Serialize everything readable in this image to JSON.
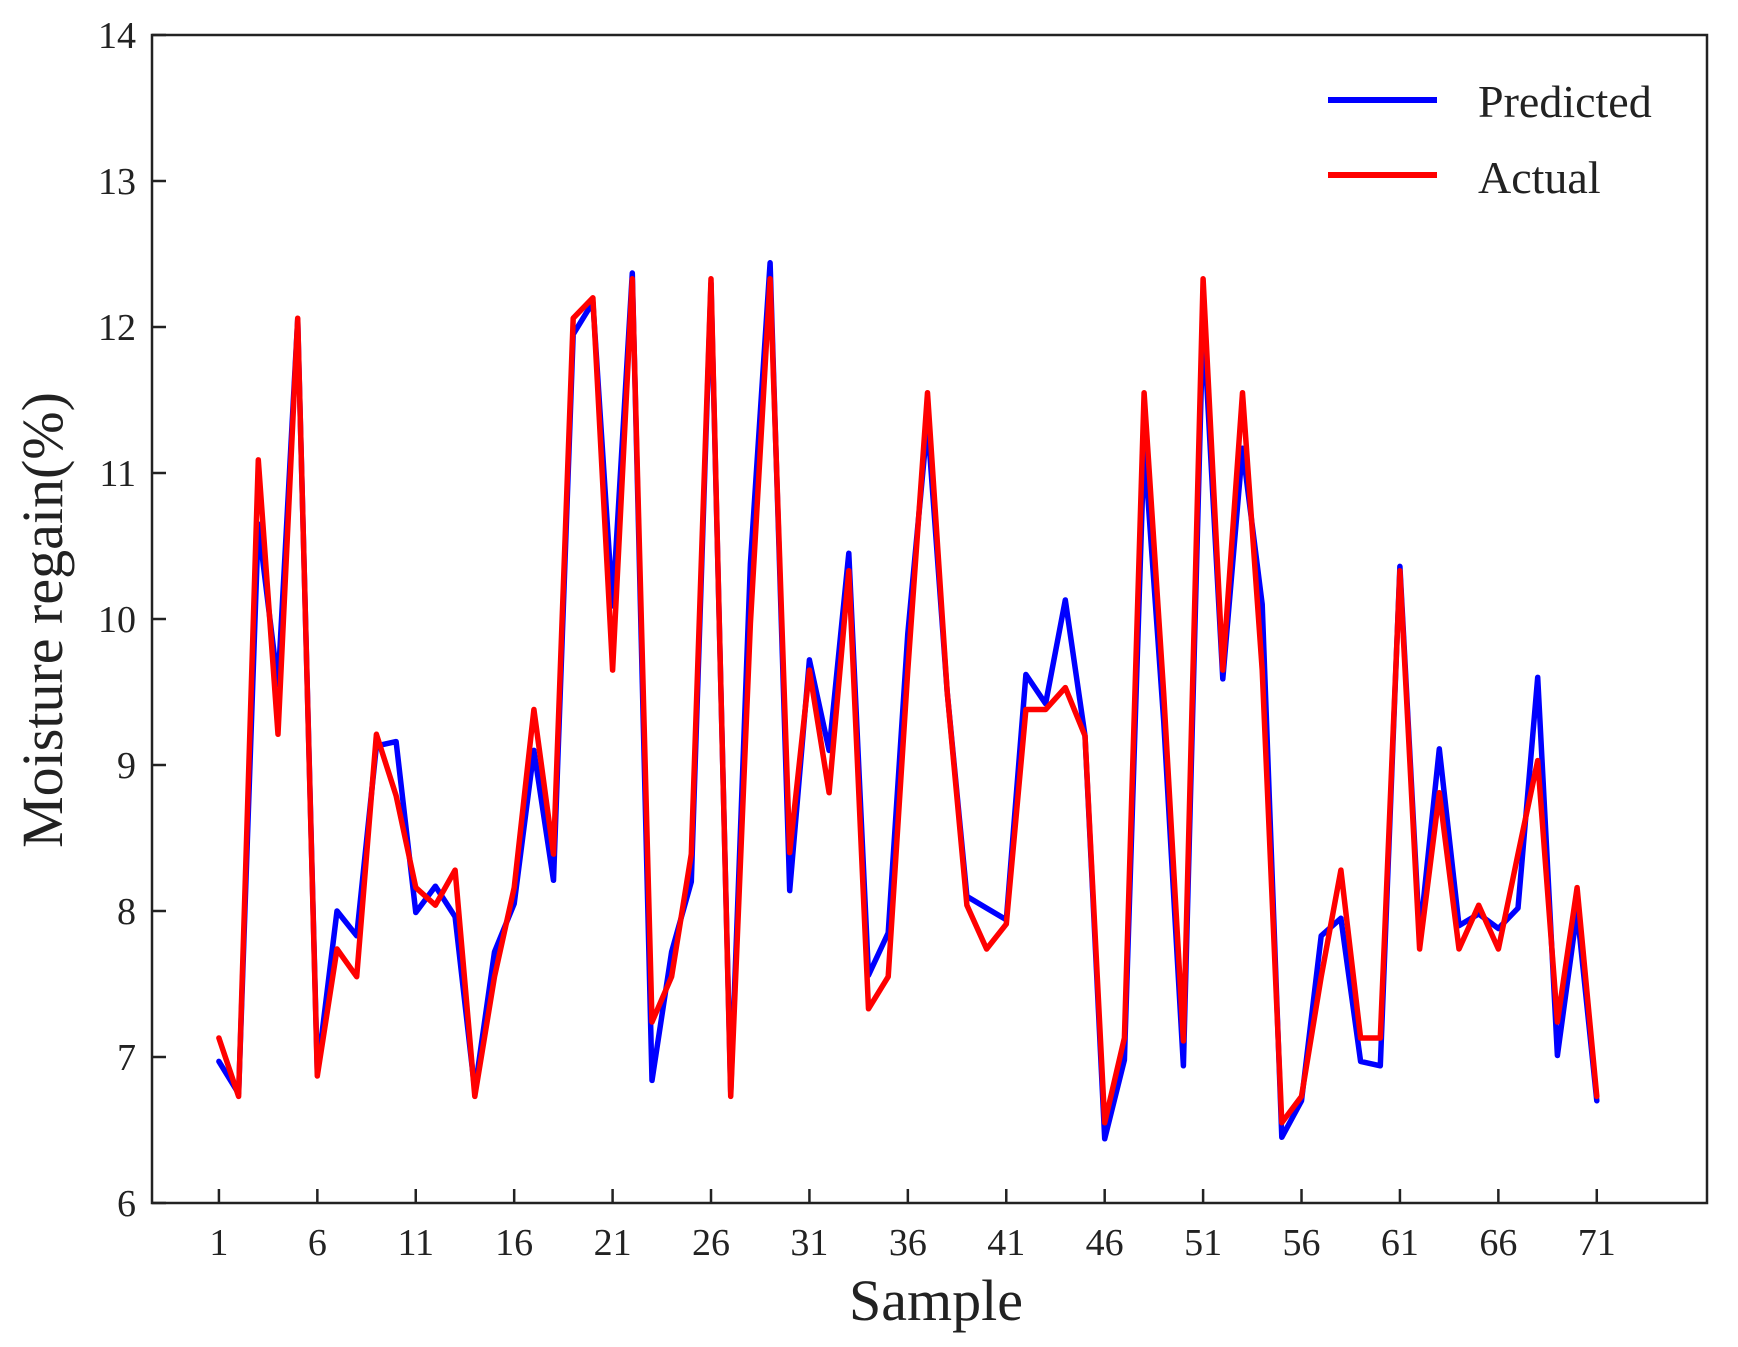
{
  "chart_data": {
    "type": "line",
    "title": "",
    "xlabel": "Sample",
    "ylabel": "Moisture regain(%)",
    "xlim": [
      -2.4,
      76.6
    ],
    "ylim": [
      6,
      14
    ],
    "x_ticks": [
      1,
      6,
      11,
      16,
      21,
      26,
      31,
      36,
      41,
      46,
      51,
      56,
      61,
      66,
      71
    ],
    "y_ticks": [
      6,
      7,
      8,
      9,
      10,
      11,
      12,
      13,
      14
    ],
    "legend_position": "top-right",
    "series": [
      {
        "name": "Predicted",
        "color": "#0000ff",
        "values": [
          6.97,
          6.75,
          10.65,
          9.55,
          12.05,
          6.9,
          8.0,
          7.83,
          9.13,
          9.16,
          7.99,
          8.17,
          7.96,
          6.77,
          7.72,
          8.05,
          9.1,
          8.21,
          11.95,
          12.17,
          10.09,
          12.37,
          6.84,
          7.72,
          8.2,
          12.3,
          6.76,
          10.38,
          12.44,
          8.14,
          9.72,
          9.1,
          10.45,
          7.56,
          7.85,
          9.9,
          11.35,
          9.5,
          8.1,
          8.02,
          7.94,
          9.62,
          9.42,
          10.13,
          9.2,
          6.44,
          6.98,
          11.2,
          9.3,
          6.94,
          12.07,
          9.59,
          11.17,
          10.1,
          6.45,
          6.7,
          7.83,
          7.95,
          6.97,
          6.94,
          10.36,
          7.82,
          9.11,
          7.9,
          7.98,
          7.88,
          8.02,
          9.6,
          7.01,
          8.0,
          6.7
        ]
      },
      {
        "name": "Actual",
        "color": "#ff0000",
        "values": [
          7.13,
          6.73,
          11.09,
          9.21,
          12.06,
          6.87,
          7.74,
          7.55,
          9.21,
          8.79,
          8.16,
          8.04,
          8.28,
          6.73,
          7.55,
          8.16,
          9.38,
          8.39,
          12.06,
          12.2,
          9.65,
          12.33,
          7.24,
          7.55,
          8.39,
          12.33,
          6.73,
          9.97,
          12.33,
          8.4,
          9.65,
          8.81,
          10.33,
          7.33,
          7.55,
          9.65,
          11.55,
          9.5,
          8.04,
          7.74,
          7.91,
          9.38,
          9.38,
          9.53,
          9.2,
          6.55,
          7.13,
          11.55,
          9.49,
          7.11,
          12.33,
          9.65,
          11.55,
          9.65,
          6.55,
          6.73,
          7.55,
          8.28,
          7.13,
          7.13,
          10.33,
          7.74,
          8.81,
          7.74,
          8.04,
          7.74,
          8.39,
          9.03,
          7.24,
          8.16,
          6.73
        ]
      }
    ]
  }
}
